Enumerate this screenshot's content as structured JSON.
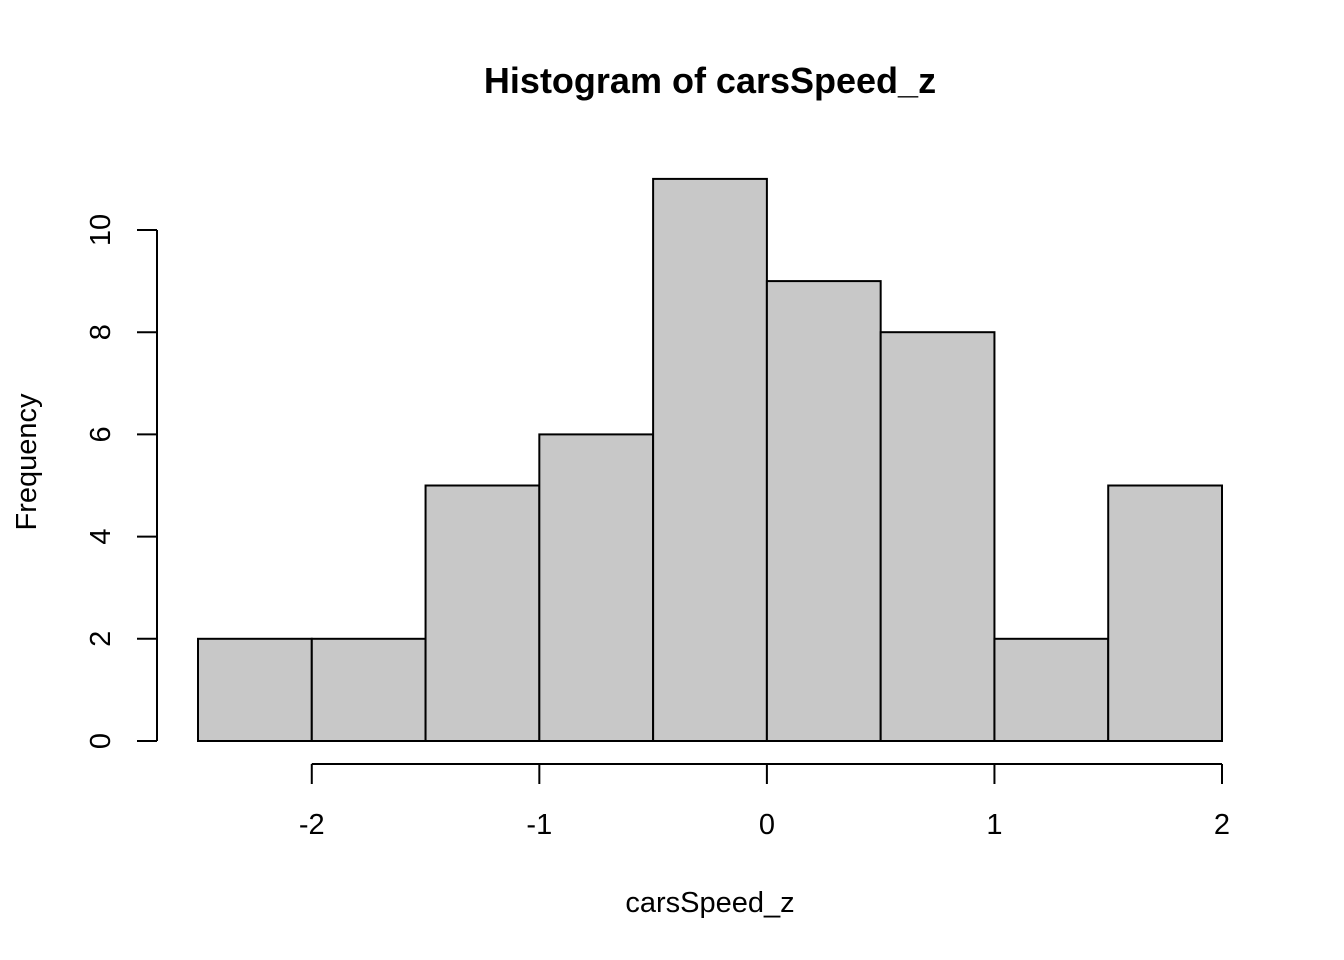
{
  "chart_data": {
    "type": "bar",
    "title": "Histogram of carsSpeed_z",
    "xlabel": "carsSpeed_z",
    "ylabel": "Frequency",
    "bins": [
      {
        "x0": -2.5,
        "x1": -2.0,
        "count": 2
      },
      {
        "x0": -2.0,
        "x1": -1.5,
        "count": 2
      },
      {
        "x0": -1.5,
        "x1": -1.0,
        "count": 5
      },
      {
        "x0": -1.0,
        "x1": -0.5,
        "count": 6
      },
      {
        "x0": -0.5,
        "x1": 0.0,
        "count": 11
      },
      {
        "x0": 0.0,
        "x1": 0.5,
        "count": 9
      },
      {
        "x0": 0.5,
        "x1": 1.0,
        "count": 8
      },
      {
        "x0": 1.0,
        "x1": 1.5,
        "count": 2
      },
      {
        "x0": 1.5,
        "x1": 2.0,
        "count": 5
      }
    ],
    "x_ticks": [
      -2,
      -1,
      0,
      1,
      2
    ],
    "x_tick_labels": [
      "-2",
      "-1",
      "0",
      "1",
      "2"
    ],
    "y_ticks": [
      0,
      2,
      4,
      6,
      8,
      10
    ],
    "y_tick_labels": [
      "0",
      "2",
      "4",
      "6",
      "8",
      "10"
    ],
    "xlim": [
      -2.5,
      2.0
    ],
    "ylim": [
      0,
      11
    ],
    "grid": false,
    "legend": "none",
    "colors": {
      "bar_fill": "#c8c8c8",
      "bar_stroke": "#000000",
      "axis": "#000000"
    }
  }
}
